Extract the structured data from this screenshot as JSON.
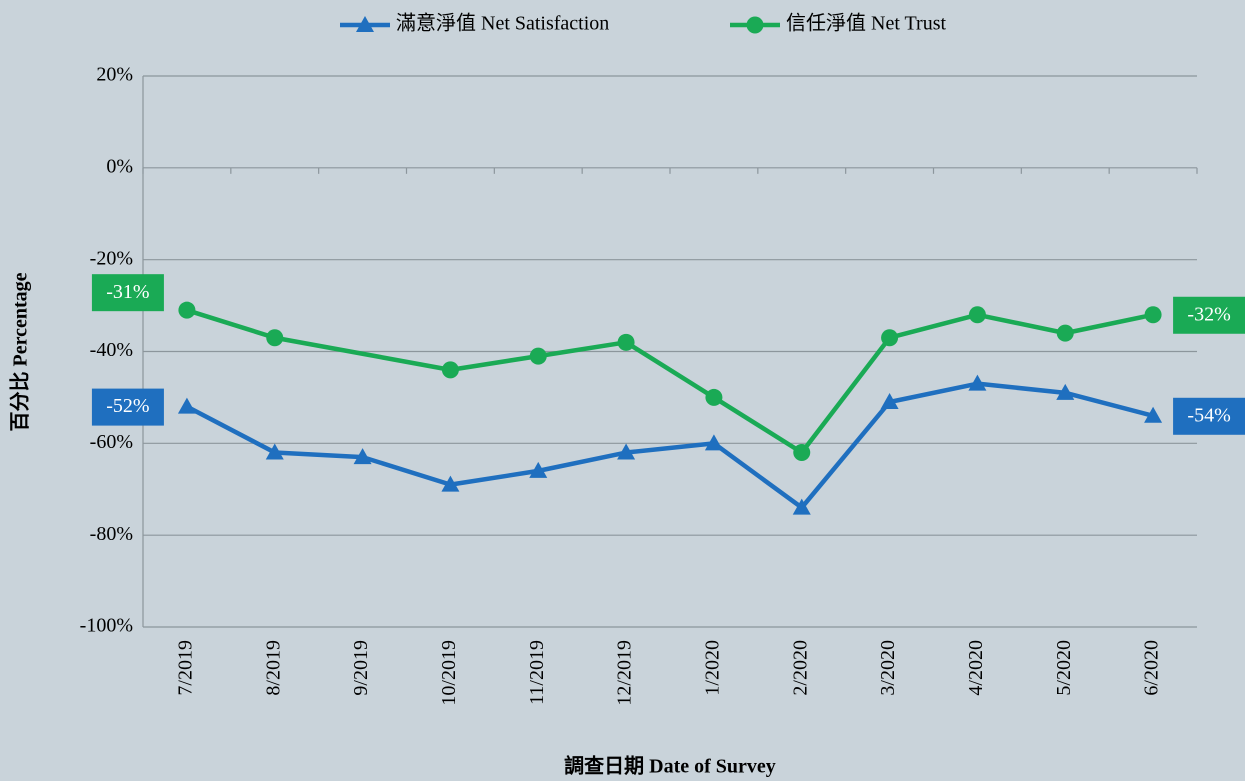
{
  "chart_data": {
    "type": "line",
    "xlabel": "調查日期 Date of Survey",
    "ylabel": "百分比 Percentage",
    "categories": [
      "7/2019",
      "8/2019",
      "9/2019",
      "10/2019",
      "11/2019",
      "12/2019",
      "1/2020",
      "2/2020",
      "3/2020",
      "4/2020",
      "5/2020",
      "6/2020"
    ],
    "series": [
      {
        "name": "滿意淨值 Net Satisfaction",
        "color": "#1f6fbf",
        "marker": "triangle",
        "values": [
          -52,
          -62,
          -63,
          -69,
          -66,
          -62,
          -60,
          -74,
          -51,
          -47,
          -49,
          -54
        ],
        "value_labels": [
          "-52%",
          null,
          null,
          null,
          null,
          null,
          null,
          null,
          null,
          null,
          null,
          "-54%"
        ]
      },
      {
        "name": "信任淨值 Net Trust",
        "color": "#1aaa55",
        "marker": "circle",
        "values": [
          -31,
          -37,
          null,
          -44,
          -41,
          -38,
          -50,
          -62,
          -37,
          -32,
          -36,
          -32
        ],
        "value_labels": [
          "-31%",
          null,
          null,
          null,
          null,
          null,
          null,
          null,
          null,
          null,
          null,
          "-32%"
        ]
      }
    ],
    "ylim": [
      -100,
      20
    ],
    "yticks": [
      {
        "value": -100,
        "label": "-100%"
      },
      {
        "value": -80,
        "label": "-80%"
      },
      {
        "value": -60,
        "label": "-60%"
      },
      {
        "value": -40,
        "label": "-40%"
      },
      {
        "value": -20,
        "label": "-20%"
      },
      {
        "value": 0,
        "label": "0%"
      },
      {
        "value": 20,
        "label": "20%"
      }
    ],
    "grid": true,
    "legend": "top"
  }
}
